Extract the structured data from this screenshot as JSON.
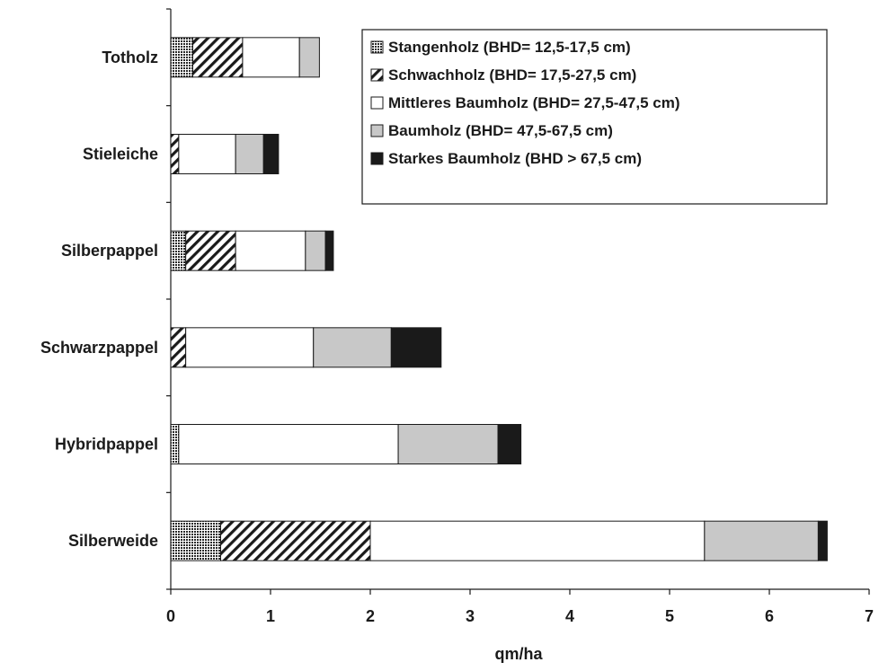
{
  "chart_data": {
    "type": "bar",
    "orientation": "horizontal",
    "stacked": true,
    "title": "",
    "xlabel": "qm/ha",
    "ylabel": "",
    "xlim": [
      0,
      7
    ],
    "x_ticks": [
      "0",
      "1",
      "2",
      "3",
      "4",
      "5",
      "6",
      "7"
    ],
    "grid": false,
    "legend_position": "top-right",
    "categories": [
      "Silberweide",
      "Hybridpappel",
      "Schwarzpappel",
      "Silberpappel",
      "Stieleiche",
      "Totholz"
    ],
    "series": [
      {
        "name": "Stangenholz (BHD= 12,5-17,5 cm)",
        "fill": "dots",
        "color": "#3a3a3a",
        "values": [
          0.5,
          0.08,
          0.0,
          0.15,
          0.0,
          0.22
        ]
      },
      {
        "name": "Schwachholz (BHD= 17,5-27,5 cm)",
        "fill": "diagonal-hatch",
        "color": "#1a1a1a",
        "values": [
          1.5,
          0.0,
          0.15,
          0.5,
          0.08,
          0.5
        ]
      },
      {
        "name": "Mittleres Baumholz (BHD= 27,5-47,5 cm)",
        "fill": "solid",
        "color": "#ffffff",
        "values": [
          3.35,
          2.2,
          1.28,
          0.7,
          0.57,
          0.57
        ]
      },
      {
        "name": "Baumholz (BHD= 47,5-67,5 cm)",
        "fill": "solid",
        "color": "#c8c8c8",
        "values": [
          1.14,
          1.0,
          0.78,
          0.2,
          0.28,
          0.2
        ]
      },
      {
        "name": "Starkes Baumholz (BHD > 67,5 cm)",
        "fill": "solid",
        "color": "#1a1a1a",
        "values": [
          0.09,
          0.23,
          0.5,
          0.08,
          0.15,
          0.0
        ]
      }
    ]
  }
}
